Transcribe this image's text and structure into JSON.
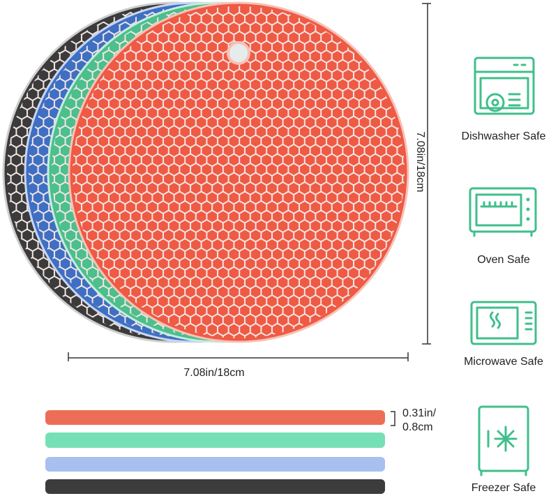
{
  "dimensions": {
    "height": "7.08in/18cm",
    "width": "7.08in/18cm",
    "thickness": [
      "0.31in/",
      "0.8cm"
    ]
  },
  "features": [
    "Dishwasher Safe",
    "Oven Safe",
    "Microwave Safe",
    "Freezer Safe"
  ]
}
